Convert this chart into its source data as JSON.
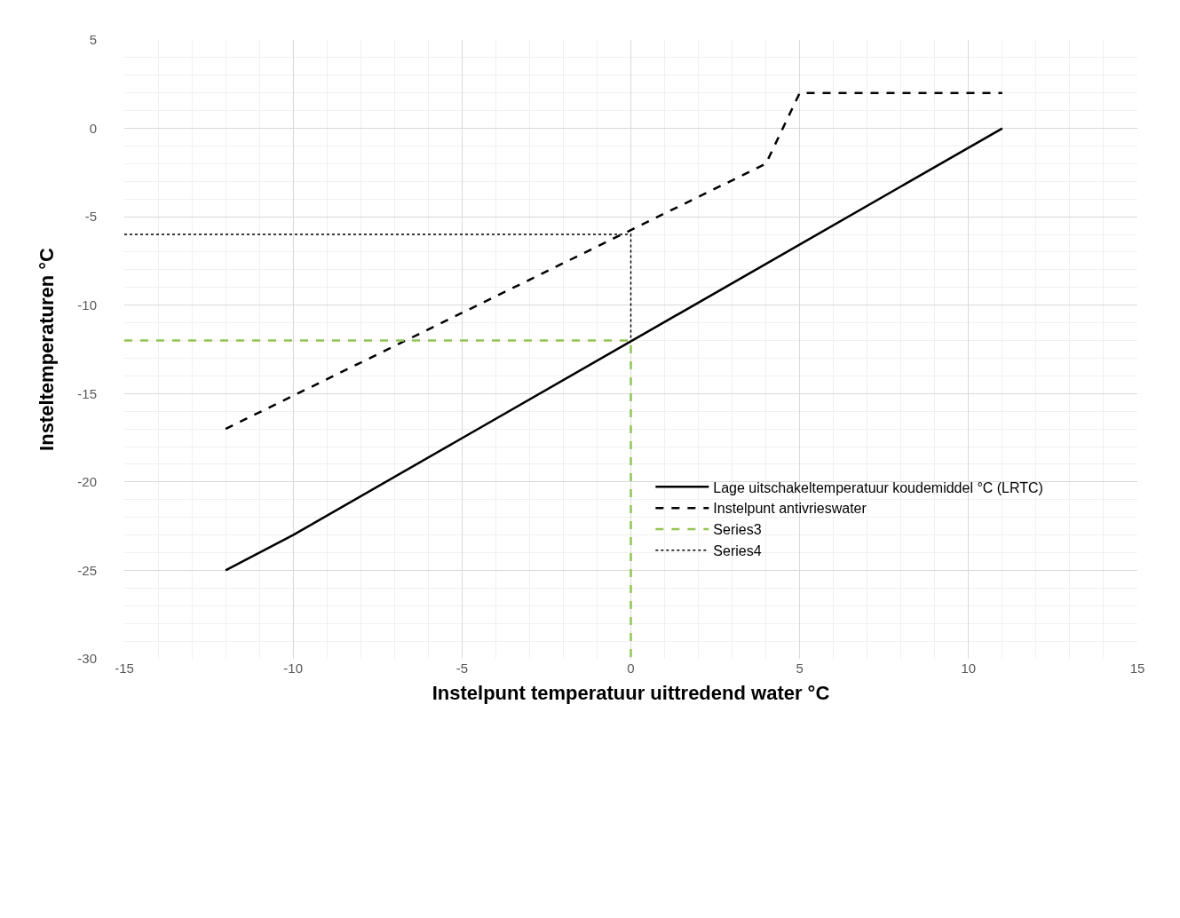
{
  "chart_data": {
    "type": "line",
    "xlabel": "Instelpunt temperatuur uittredend water °C",
    "ylabel": "Insteltemperaturen °C",
    "xlim": [
      -15,
      15
    ],
    "xticks": [
      -15,
      -10,
      -5,
      0,
      5,
      10,
      15
    ],
    "ylim": [
      -30,
      5
    ],
    "yticks": [
      -30,
      -25,
      -20,
      -15,
      -10,
      -5,
      0,
      5
    ],
    "grid": true,
    "legend": "bottom right",
    "marker": "none",
    "series": [
      {
        "name": "Lage uitschakeltemperatuur koudemiddel °C (LRTC)",
        "color": "#000000",
        "line_style": "solid",
        "x": [
          -12,
          -10,
          11
        ],
        "values": [
          -25,
          -23,
          0
        ]
      },
      {
        "name": "Instelpunt antivrieswater",
        "color": "#000000",
        "line_style": "dashed",
        "x": [
          -12,
          4,
          5,
          11
        ],
        "values": [
          -17,
          -2,
          2,
          2
        ]
      },
      {
        "name": "Series3",
        "color": "#92c353",
        "line_style": "dashed",
        "x": [
          -15,
          0,
          0
        ],
        "values": [
          -12,
          -12,
          -30
        ]
      },
      {
        "name": "Series4",
        "color": "#000000",
        "line_style": "dotted",
        "x": [
          -15,
          0,
          0
        ],
        "values": [
          -6,
          -6,
          -12
        ]
      }
    ]
  }
}
